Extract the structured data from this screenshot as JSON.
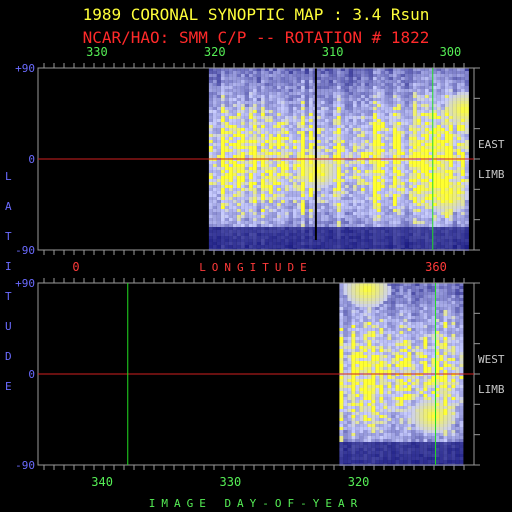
{
  "title": "1989 CORONAL SYNOPTIC MAP : 3.4 Rsun",
  "subtitle": "NCAR/HAO: SMM C/P -- ROTATION # 1822",
  "colors": {
    "title": "#ffff3a",
    "subtitle": "#ff2a2a",
    "carrington_ticks": "#55ee55",
    "longitude_axis": "#ff3a3a",
    "latitude_axis": "#6b6bff",
    "day_axis": "#55ee55",
    "limb_label": "#c8c8c8",
    "equator_line": "#d02020",
    "marker_line": "#22dd22",
    "data_low": "#0a0a78",
    "data_mid": "#c8ccff",
    "data_high": "#ffff30"
  },
  "chart_data": [
    {
      "type": "heatmap",
      "panel": "east limb",
      "side_label": [
        "EAST",
        "LIMB"
      ],
      "top_axis": {
        "ticks": [
          "330",
          "320",
          "310",
          "300"
        ],
        "values": [
          330,
          320,
          310,
          300
        ]
      },
      "bottom_axis": {
        "label": "LONGITUDE",
        "ticks": [
          "0",
          "360"
        ],
        "values": [
          0,
          360
        ]
      },
      "left_axis": {
        "label": "LATITUDE",
        "ticks": [
          "+90",
          "0",
          "-90"
        ],
        "values": [
          90,
          0,
          -90
        ]
      },
      "xlim": [
        335,
        298
      ],
      "ylim": [
        -90,
        90
      ],
      "data_x_range": [
        320.5,
        298.5
      ],
      "gap_at": 311.5,
      "equator": 0,
      "marker_at": 301.5,
      "bright_regions": [
        {
          "x": 300.5,
          "lat": -35,
          "level": "high"
        },
        {
          "x": 299.0,
          "lat": 50,
          "level": "high"
        },
        {
          "x": 311.5,
          "lat": -10,
          "level": "high"
        }
      ]
    },
    {
      "type": "heatmap",
      "panel": "west limb",
      "side_label": [
        "WEST",
        "LIMB"
      ],
      "bottom_axis": {
        "label": "IMAGE DAY-OF-YEAR",
        "ticks": [
          "340",
          "330",
          "320"
        ],
        "values": [
          340,
          330,
          320
        ]
      },
      "left_axis": {
        "ticks": [
          "+90",
          "0",
          "-90"
        ],
        "values": [
          90,
          0,
          -90
        ]
      },
      "xlim": [
        345,
        311
      ],
      "ylim": [
        -90,
        90
      ],
      "data_x_range": [
        321.5,
        312.0
      ],
      "equator": 0,
      "marker_at": 338,
      "marker_at_2": 314,
      "bright_regions": [
        {
          "x": 319.5,
          "lat": 85,
          "level": "high"
        },
        {
          "x": 314.3,
          "lat": -40,
          "level": "high"
        }
      ]
    }
  ]
}
